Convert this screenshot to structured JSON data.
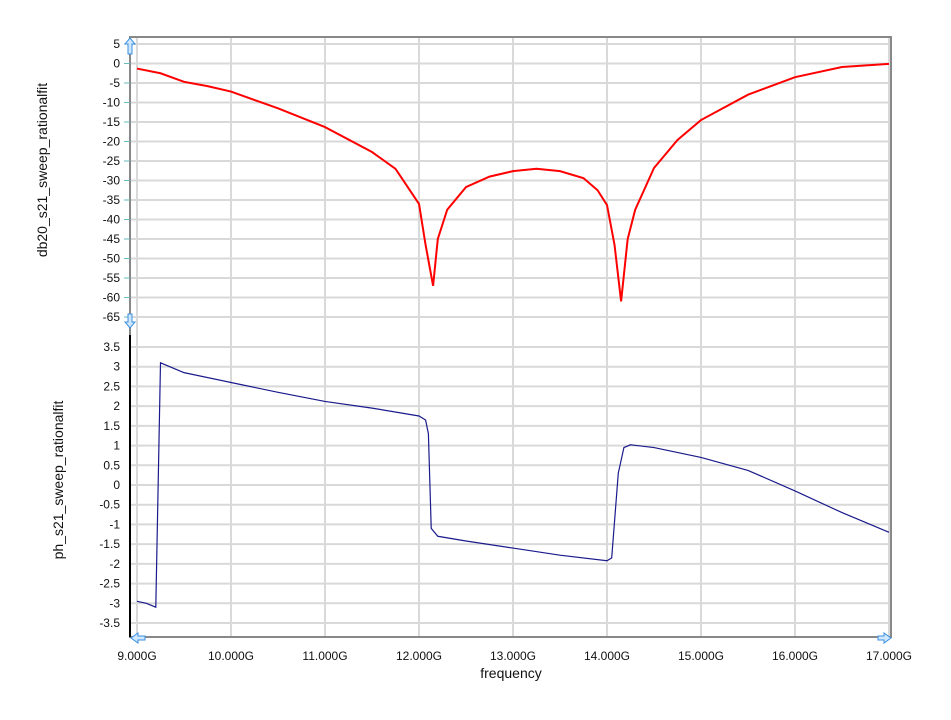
{
  "chart_data": [
    {
      "type": "line",
      "ylabel": "db20_s21_sweep_rationalfit",
      "ylim": [
        -65,
        5
      ],
      "yticks": [
        5,
        0,
        -5,
        -10,
        -15,
        -20,
        -25,
        -30,
        -35,
        -40,
        -45,
        -50,
        -55,
        -60,
        -65
      ],
      "grid": true,
      "color": "#ff0000",
      "x": [
        9.0,
        9.25,
        9.5,
        9.75,
        10.0,
        10.5,
        11.0,
        11.5,
        11.75,
        12.0,
        12.07,
        12.15,
        12.2,
        12.3,
        12.5,
        12.75,
        13.0,
        13.25,
        13.5,
        13.75,
        13.9,
        14.0,
        14.08,
        14.15,
        14.22,
        14.3,
        14.5,
        14.75,
        15.0,
        15.5,
        16.0,
        16.5,
        17.0
      ],
      "y": [
        -1.3,
        -2.5,
        -4.7,
        -5.8,
        -7.2,
        -11.5,
        -16.3,
        -22.7,
        -27,
        -36,
        -46.5,
        -57,
        -45,
        -37.5,
        -31.7,
        -29,
        -27.6,
        -27,
        -27.6,
        -29.4,
        -32.5,
        -36.3,
        -46.5,
        -61,
        -45,
        -37.5,
        -26.8,
        -19.6,
        -14.5,
        -8,
        -3.5,
        -0.9,
        -0.1
      ]
    },
    {
      "type": "line",
      "ylabel": "ph_s21_sweep_rationalfit",
      "xlabel": "frequency",
      "ylim": [
        -3.5,
        3.5
      ],
      "yticks": [
        3.5,
        3,
        2.5,
        2,
        1.5,
        1,
        0.5,
        0,
        -0.5,
        -1,
        -1.5,
        -2,
        -2.5,
        -3,
        -3.5
      ],
      "xlim": [
        9,
        17
      ],
      "xticks": [
        "9.000G",
        "10.000G",
        "11.000G",
        "12.000G",
        "13.000G",
        "14.000G",
        "15.000G",
        "16.000G",
        "17.000G"
      ],
      "grid": true,
      "color": "#1a1a8c",
      "x": [
        9.0,
        9.1,
        9.2,
        9.25,
        9.5,
        10.0,
        10.5,
        11.0,
        11.5,
        12.0,
        12.07,
        12.1,
        12.13,
        12.2,
        12.5,
        13.0,
        13.5,
        14.0,
        14.05,
        14.12,
        14.18,
        14.25,
        14.5,
        15.0,
        15.5,
        16.0,
        16.5,
        17.0
      ],
      "y": [
        -2.95,
        -3.0,
        -3.1,
        3.1,
        2.85,
        2.6,
        2.35,
        2.12,
        1.95,
        1.75,
        1.65,
        1.3,
        -1.1,
        -1.3,
        -1.42,
        -1.6,
        -1.78,
        -1.92,
        -1.85,
        0.3,
        0.95,
        1.02,
        0.95,
        0.7,
        0.37,
        -0.15,
        -0.7,
        -1.2
      ]
    }
  ]
}
